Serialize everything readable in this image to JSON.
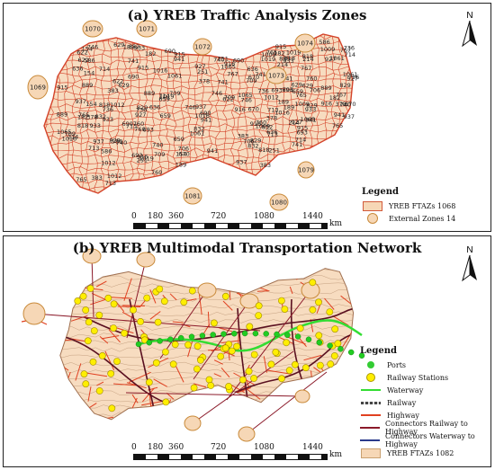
{
  "panel_a": {
    "title": "(a) YREB Traffic Analysis Zones",
    "north_label": "N",
    "legend": {
      "title": "Legend",
      "items": [
        {
          "label": "YREB FTAZs 1068",
          "symbol": "zone-box",
          "fill": "#f6d7b6",
          "stroke": "#d25a3a"
        },
        {
          "label": "External Zones 14",
          "symbol": "ellipse",
          "fill": "#f6d7b6",
          "stroke": "#c98a3a"
        }
      ]
    },
    "scale": {
      "ticks": [
        "0",
        "180",
        "360",
        "720",
        "1080",
        "1440"
      ],
      "unit": "km"
    },
    "external_zones": [
      "1070",
      "1071",
      "1072",
      "1073",
      "1074",
      "1069",
      "1081",
      "1080",
      "1079"
    ],
    "zone_labels": [
      "829",
      "916",
      "927",
      "941",
      "832",
      "915",
      "937",
      "818",
      "933",
      "767",
      "765",
      "760",
      "713",
      "709",
      "741",
      "736",
      "693",
      "690",
      "889",
      "714",
      "214",
      "251",
      "189",
      "378",
      "622",
      "629",
      "586",
      "636",
      "182",
      "154",
      "383",
      "1012",
      "1016",
      "1019",
      "1009",
      "1065",
      "1061",
      "740",
      "746",
      "706",
      "670",
      "659"
    ]
  },
  "panel_b": {
    "title": "(b) YREB Multimodal Transportation Network",
    "north_label": "N",
    "legend": {
      "title": "Legend",
      "items": [
        {
          "label": "Ports",
          "symbol": "dot",
          "color": "#33cc33"
        },
        {
          "label": "Railway Stations",
          "symbol": "dot",
          "color": "#ffee00"
        },
        {
          "label": "Waterway",
          "symbol": "line",
          "color": "#33dd33"
        },
        {
          "label": "Railway",
          "symbol": "rail",
          "color": "#444444"
        },
        {
          "label": "Highway",
          "symbol": "line",
          "color": "#e04020"
        },
        {
          "label": "Connectors Railway to Highway",
          "symbol": "line",
          "color": "#8b1a2a"
        },
        {
          "label": "Connectors Waterway to Highway",
          "symbol": "line",
          "color": "#2a3a8b"
        },
        {
          "label": "YREB FTAZs 1082",
          "symbol": "zone-box",
          "fill": "#f6d7b6",
          "stroke": "#c9a070"
        }
      ]
    },
    "scale": {
      "ticks": [
        "0",
        "180",
        "360",
        "720",
        "1080",
        "1440"
      ],
      "unit": "km"
    }
  },
  "colors": {
    "zone_fill": "#f7dcc0",
    "zone_stroke": "#d4432a",
    "ellipse_fill": "#f6d7b6",
    "ellipse_stroke": "#c98a3a",
    "rail": "#5a1020",
    "waterway": "#33dd33",
    "station": "#ffee00",
    "port": "#22cc22"
  }
}
